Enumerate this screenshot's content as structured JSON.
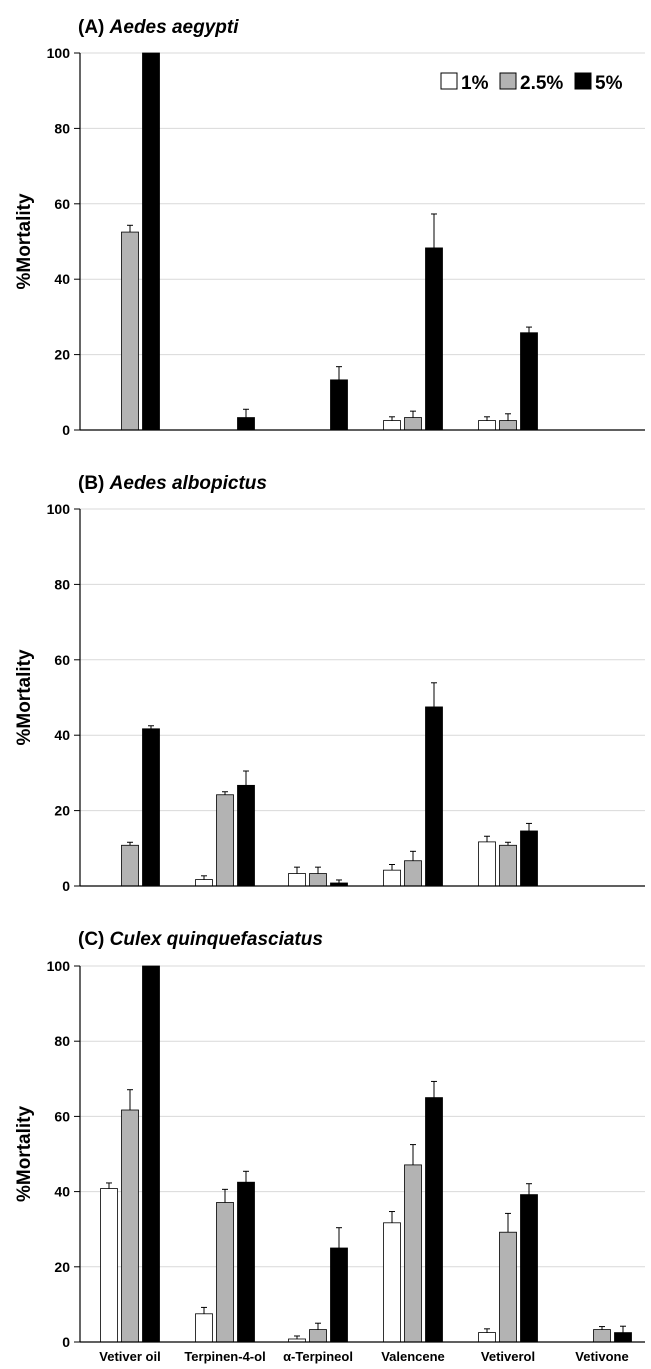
{
  "colors": {
    "1%": "#ffffff",
    "2.5%": "#b3b3b3",
    "5%": "#000000",
    "grid": "#d9d9d9",
    "axis": "#000000"
  },
  "chart_data": [
    {
      "type": "bar",
      "title_prefix": "(A) ",
      "title_species": "Aedes aegypti",
      "ylabel": "%Mortality",
      "ylim": [
        0,
        100
      ],
      "yticks": [
        0,
        20,
        40,
        60,
        80,
        100
      ],
      "grid": true,
      "legend": {
        "position": "top-right",
        "entries": [
          "1%",
          "2.5%",
          "5%"
        ]
      },
      "categories": [
        "Vetiver oil",
        "Terpinen-4-ol",
        "α-Terpineol",
        "Valencene",
        "Vetiverol",
        "Vetivone"
      ],
      "series": [
        {
          "name": "1%",
          "values": [
            0,
            0,
            0,
            2.5,
            2.5,
            0
          ],
          "errors": [
            0,
            0,
            0,
            1.0,
            1.0,
            0
          ]
        },
        {
          "name": "2.5%",
          "values": [
            52.5,
            0,
            0,
            3.3,
            2.5,
            0
          ],
          "errors": [
            1.8,
            0,
            0,
            1.7,
            1.8,
            0
          ]
        },
        {
          "name": "5%",
          "values": [
            100,
            3.3,
            13.3,
            48.3,
            25.8,
            0
          ],
          "errors": [
            0,
            2.2,
            3.5,
            9.0,
            1.5,
            0
          ]
        }
      ]
    },
    {
      "type": "bar",
      "title_prefix": "(B) ",
      "title_species": "Aedes albopictus",
      "ylabel": "%Mortality",
      "ylim": [
        0,
        100
      ],
      "yticks": [
        0,
        20,
        40,
        60,
        80,
        100
      ],
      "grid": true,
      "categories": [
        "Vetiver oil",
        "Terpinen-4-ol",
        "α-Terpineol",
        "Valencene",
        "Vetiverol",
        "Vetivone"
      ],
      "series": [
        {
          "name": "1%",
          "values": [
            0,
            1.7,
            3.3,
            4.2,
            11.7,
            0
          ],
          "errors": [
            0,
            1.0,
            1.7,
            1.5,
            1.5,
            0
          ]
        },
        {
          "name": "2.5%",
          "values": [
            10.8,
            24.2,
            3.3,
            6.7,
            10.8,
            0
          ],
          "errors": [
            0.8,
            0.8,
            1.7,
            2.5,
            0.8,
            0
          ]
        },
        {
          "name": "5%",
          "values": [
            41.7,
            26.7,
            0.8,
            47.5,
            14.6,
            0
          ],
          "errors": [
            0.8,
            3.8,
            0.8,
            6.4,
            2.0,
            0
          ]
        }
      ]
    },
    {
      "type": "bar",
      "title_prefix": "(C) ",
      "title_species": "Culex quinquefasciatus",
      "ylabel": "%Mortality",
      "ylim": [
        0,
        100
      ],
      "yticks": [
        0,
        20,
        40,
        60,
        80,
        100
      ],
      "grid": true,
      "categories": [
        "Vetiver oil",
        "Terpinen-4-ol",
        "α-Terpineol",
        "Valencene",
        "Vetiverol",
        "Vetivone"
      ],
      "series": [
        {
          "name": "1%",
          "values": [
            40.8,
            7.5,
            0.8,
            31.7,
            2.5,
            0
          ],
          "errors": [
            1.5,
            1.7,
            0.8,
            3.0,
            1.0,
            0
          ]
        },
        {
          "name": "2.5%",
          "values": [
            61.7,
            37.1,
            3.3,
            47.1,
            29.2,
            3.3
          ],
          "errors": [
            5.4,
            3.5,
            1.7,
            5.4,
            5.0,
            0.8
          ]
        },
        {
          "name": "5%",
          "values": [
            100,
            42.5,
            25.0,
            65.0,
            39.2,
            2.5
          ],
          "errors": [
            0,
            2.9,
            5.4,
            4.3,
            2.9,
            1.7
          ]
        }
      ]
    }
  ]
}
